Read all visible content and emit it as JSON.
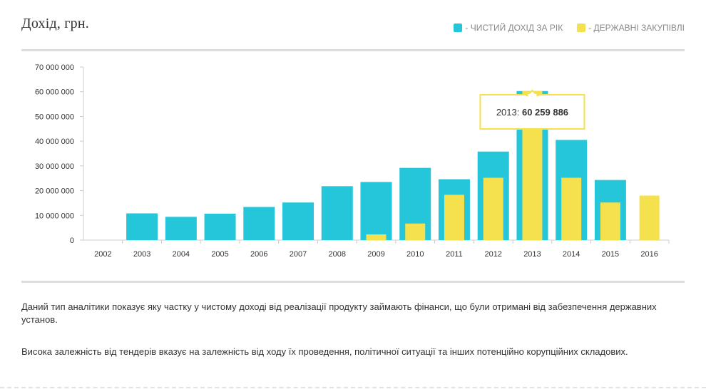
{
  "header": {
    "title": "Дохід, грн."
  },
  "legend": {
    "items": [
      {
        "label": "- ЧИСТИЙ ДОХІД ЗА РІК",
        "color": "#26c6da"
      },
      {
        "label": "- ДЕРЖАВНІ ЗАКУПІВЛІ",
        "color": "#f5e04e"
      }
    ]
  },
  "chart_data": {
    "type": "bar",
    "categories": [
      "2002",
      "2003",
      "2004",
      "2005",
      "2006",
      "2007",
      "2008",
      "2009",
      "2010",
      "2011",
      "2012",
      "2013",
      "2014",
      "2015",
      "2016"
    ],
    "series": [
      {
        "name": "- ЧИСТИЙ ДОХІД ЗА РІК",
        "color": "#26c6da",
        "values": [
          0,
          10800000,
          9400000,
          10700000,
          13400000,
          15200000,
          21800000,
          23500000,
          29200000,
          24600000,
          35800000,
          60259886,
          40500000,
          24300000,
          0
        ]
      },
      {
        "name": "- ДЕРЖАВНІ ЗАКУПІВЛІ",
        "color": "#f5e04e",
        "values": [
          0,
          0,
          0,
          0,
          0,
          0,
          0,
          2300000,
          6700000,
          18300000,
          25200000,
          60259886,
          25200000,
          15200000,
          18000000
        ]
      }
    ],
    "y_ticks": [
      "0",
      "10 000 000",
      "20 000 000",
      "30 000 000",
      "40 000 000",
      "50 000 000",
      "60 000 000",
      "70 000 000"
    ],
    "ylim": [
      0,
      70000000
    ],
    "legend_position": "top-right",
    "grid": false
  },
  "tooltip": {
    "label": "2013:",
    "value": "60 259 886",
    "border_color": "#f5e04e"
  },
  "description": {
    "p1": "Даний тип аналітики показує яку частку у чистому доході від реалізації продукту займають фінанси, що були отримані від забезпечення державних установ.",
    "p2": "Висока залежність від тендерів вказує на залежність від ходу їх проведення, політичної ситуації та інших потенційно корупційних складових."
  }
}
